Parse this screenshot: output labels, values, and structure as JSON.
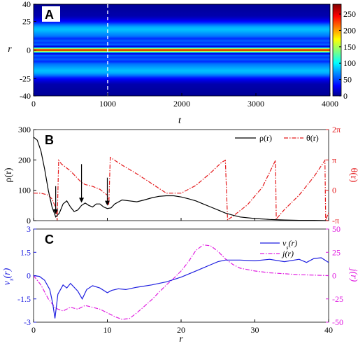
{
  "chart_data": [
    {
      "panel": "A",
      "type": "heatmap",
      "xlabel": "t",
      "ylabel": "r",
      "xlim": [
        0,
        4000
      ],
      "ylim": [
        -40,
        40
      ],
      "xticks": [
        "0",
        "1000",
        "2000",
        "3000",
        "4000"
      ],
      "yticks": [
        "40",
        "25",
        "0",
        "-25",
        "-40"
      ],
      "colorbar": {
        "ticks": [
          "0",
          "50",
          "100",
          "150",
          "200",
          "250"
        ],
        "range": [
          0,
          280
        ]
      },
      "marker_t": 1000,
      "profile_r": [
        0,
        1.5,
        3,
        4.5,
        6.5,
        8,
        10,
        12,
        14.5,
        16.5,
        18,
        20,
        22,
        24,
        26,
        28,
        30,
        40
      ],
      "profile_value": [
        280,
        120,
        15,
        60,
        45,
        58,
        42,
        62,
        72,
        80,
        84,
        78,
        62,
        40,
        25,
        15,
        8,
        2
      ]
    },
    {
      "panel": "B",
      "type": "line",
      "xlabel": "",
      "xlim": [
        0,
        40
      ],
      "ylim_left": [
        0,
        300
      ],
      "ylabel_left": "ρ(r)",
      "ylabel_right": "θ(r)",
      "yticks_left": [
        "0",
        "100",
        "200",
        "300"
      ],
      "yticks_right": [
        "-π",
        "0",
        "π",
        "2π"
      ],
      "ylim_right": [
        -3.1416,
        6.2832
      ],
      "legend": [
        "ρ(r)",
        "θ(r)"
      ],
      "arrows_r": [
        3,
        6.5,
        10
      ],
      "series": [
        {
          "name": "ρ(r)",
          "axis": "left",
          "x": [
            0,
            0.5,
            1,
            1.5,
            2,
            2.5,
            3,
            3.5,
            4,
            4.5,
            5,
            5.5,
            6,
            6.5,
            7,
            7.5,
            8,
            8.5,
            9,
            9.5,
            10,
            10.5,
            11,
            12,
            13,
            14,
            15,
            16,
            17,
            18,
            19,
            20,
            21,
            22,
            23,
            24,
            25,
            26,
            27,
            28,
            30,
            32,
            34,
            36,
            38,
            40
          ],
          "y": [
            275,
            265,
            230,
            170,
            100,
            45,
            12,
            25,
            55,
            65,
            45,
            30,
            35,
            50,
            58,
            50,
            45,
            55,
            55,
            45,
            40,
            42,
            55,
            68,
            65,
            62,
            68,
            75,
            80,
            82,
            82,
            78,
            72,
            65,
            55,
            45,
            35,
            25,
            18,
            12,
            7,
            4,
            2,
            1,
            1,
            0
          ]
        },
        {
          "name": "θ(r)",
          "axis": "right",
          "x": [
            0,
            1,
            1.5,
            2,
            2.5,
            3,
            3.2,
            3.4,
            3.6,
            3.8,
            4,
            5,
            6,
            6.5,
            7,
            8,
            9,
            10,
            10.2,
            10.4,
            10.6,
            11,
            12,
            14,
            16,
            18,
            20,
            22,
            24,
            25.5,
            26,
            26.3,
            26.6,
            27,
            29,
            31,
            32.8,
            32.9,
            33.2,
            34,
            36,
            38,
            39.5,
            39.6,
            40
          ],
          "y": [
            -0.3,
            -0.3,
            -0.4,
            -0.5,
            -0.9,
            -1.8,
            -3.1,
            3.1,
            2.9,
            2.7,
            2.6,
            2.0,
            1.2,
            0.8,
            0.6,
            0.4,
            0.1,
            -0.5,
            -1.5,
            3.4,
            3.3,
            3.1,
            2.6,
            1.7,
            0.7,
            -0.3,
            -0.3,
            0.5,
            1.8,
            2.9,
            3.1,
            -3.1,
            -2.9,
            -2.7,
            -1.5,
            0.3,
            3.1,
            -3.0,
            -2.7,
            -2.0,
            -0.5,
            1.4,
            3.1,
            -3.1,
            -2.3
          ]
        }
      ]
    },
    {
      "panel": "C",
      "type": "line",
      "xlabel": "r",
      "xlim": [
        0,
        40
      ],
      "ylim_left": [
        -3,
        3
      ],
      "ylim_right": [
        -50,
        50
      ],
      "ylabel_left": "v_s(r)",
      "ylabel_right": "j(r)",
      "yticks_left": [
        "3",
        "1.5",
        "0",
        "-1.5",
        "-3"
      ],
      "yticks_right": [
        "50",
        "25",
        "0",
        "-25",
        "-50"
      ],
      "xticks": [
        "0",
        "10",
        "20",
        "30",
        "40"
      ],
      "legend": [
        "v_s(r)",
        "j(r)"
      ],
      "series": [
        {
          "name": "v_s(r)",
          "axis": "left",
          "x": [
            0,
            0.8,
            1.5,
            2.2,
            2.6,
            2.9,
            3.3,
            4,
            4.5,
            5,
            6,
            6.6,
            7.2,
            8,
            9,
            10,
            10.6,
            11.5,
            12.5,
            14,
            16,
            18,
            20,
            22,
            24,
            25,
            26,
            28,
            30,
            32,
            34,
            36,
            37,
            38,
            39,
            40
          ],
          "y": [
            0,
            -0.05,
            -0.3,
            -0.9,
            -1.8,
            -2.75,
            -1.2,
            -0.6,
            -0.8,
            -0.5,
            -1.0,
            -1.5,
            -0.9,
            -0.65,
            -0.8,
            -1.1,
            -0.95,
            -0.85,
            -0.9,
            -0.75,
            -0.6,
            -0.4,
            -0.1,
            0.3,
            0.7,
            0.9,
            1.0,
            1.0,
            0.95,
            1.05,
            0.9,
            1.05,
            0.85,
            1.1,
            1.15,
            0.85
          ]
        },
        {
          "name": "j(r)",
          "axis": "right",
          "x": [
            0,
            1,
            2,
            3,
            4,
            5,
            6,
            7,
            8,
            9,
            10,
            11,
            12,
            13,
            14,
            15,
            16,
            17,
            18,
            19,
            20,
            21,
            22,
            23,
            24,
            25,
            26,
            27,
            28,
            30,
            32,
            34,
            36,
            38,
            40
          ],
          "y": [
            0,
            -10,
            -25,
            -35,
            -38,
            -34,
            -36,
            -32,
            -34,
            -36,
            -40,
            -44,
            -47,
            -46,
            -40,
            -33,
            -26,
            -18,
            -10,
            -3,
            5,
            15,
            27,
            33,
            32,
            26,
            18,
            12,
            8,
            5,
            3,
            2,
            1,
            0.5,
            0
          ]
        }
      ]
    }
  ],
  "colors": {
    "rho": "#000000",
    "theta": "#e41a1c",
    "vs": "#1f1fe0",
    "j": "#e01ee0",
    "marker": "#ffffff"
  }
}
